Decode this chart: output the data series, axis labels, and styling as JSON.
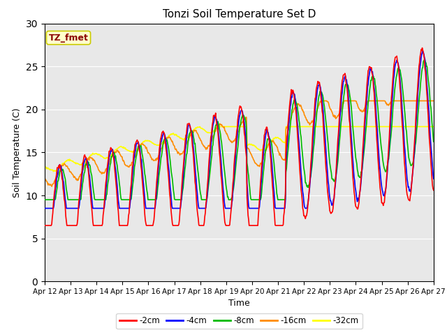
{
  "title": "Tonzi Soil Temperature Set D",
  "xlabel": "Time",
  "ylabel": "Soil Temperature (C)",
  "annotation": "TZ_fmet",
  "annotation_color": "#8B0000",
  "annotation_bg": "#FFFFCC",
  "annotation_border": "#CCCC00",
  "ylim": [
    0,
    30
  ],
  "yticks": [
    0,
    5,
    10,
    15,
    20,
    25,
    30
  ],
  "background_color": "#E8E8E8",
  "fig_color": "#FFFFFF",
  "colors": {
    "-2cm": "#FF0000",
    "-4cm": "#0000FF",
    "-8cm": "#00BB00",
    "-16cm": "#FF8C00",
    "-32cm": "#FFFF00"
  },
  "tick_labels": [
    "Apr 12",
    "Apr 13",
    "Apr 14",
    "Apr 15",
    "Apr 16",
    "Apr 17",
    "Apr 18",
    "Apr 19",
    "Apr 20",
    "Apr 21",
    "Apr 22",
    "Apr 23",
    "Apr 24",
    "Apr 25",
    "Apr 26",
    "Apr 27"
  ],
  "n_days": 15,
  "pts_per_day": 48
}
